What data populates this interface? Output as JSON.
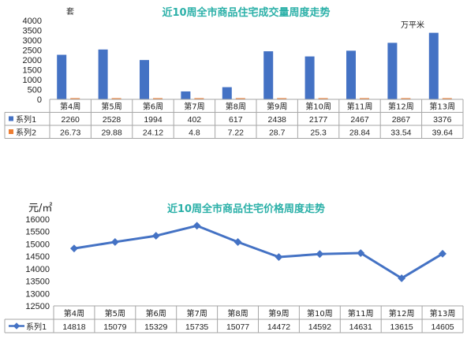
{
  "chart_data": [
    {
      "type": "bar",
      "title": "近10周全市商品住宅成交量周度走势",
      "left_unit": "套",
      "right_unit": "万平米",
      "categories": [
        "第4周",
        "第5周",
        "第6周",
        "第7周",
        "第8周",
        "第9周",
        "第10周",
        "第11周",
        "第12周",
        "第13周"
      ],
      "ylim": [
        0,
        4000
      ],
      "yticks": [
        0,
        500,
        1000,
        1500,
        2000,
        2500,
        3000,
        3500,
        4000
      ],
      "grid": false,
      "legend": "data-table",
      "series": [
        {
          "name": "系列1",
          "color": "#4472c4",
          "values": [
            2260,
            2528,
            1994,
            402,
            617,
            2438,
            2177,
            2467,
            2867,
            3376
          ],
          "labels": [
            "2260",
            "2528",
            "1994",
            "402",
            "617",
            "2438",
            "2177",
            "2467",
            "2867",
            "3376"
          ]
        },
        {
          "name": "系列2",
          "color": "#ed7d31",
          "values": [
            26.73,
            29.88,
            24.12,
            4.8,
            7.22,
            28.7,
            25.3,
            28.84,
            33.54,
            39.64
          ],
          "labels": [
            "26.73",
            "29.88",
            "24.12",
            "4.8",
            "7.22",
            "28.7",
            "25.3",
            "28.84",
            "33.54",
            "39.64"
          ]
        }
      ]
    },
    {
      "type": "line",
      "title": "近10周全市商品住宅价格周度走势",
      "unit": "元/㎡",
      "categories": [
        "第4周",
        "第5周",
        "第6周",
        "第7周",
        "第8周",
        "第9周",
        "第10周",
        "第11周",
        "第12周",
        "第13周"
      ],
      "ylim": [
        12500,
        16000
      ],
      "yticks": [
        12500,
        13000,
        13500,
        14000,
        14500,
        15000,
        15500,
        16000
      ],
      "grid": false,
      "legend": "data-table",
      "series": [
        {
          "name": "系列1",
          "color": "#4472c4",
          "values": [
            14818,
            15079,
            15329,
            15735,
            15077,
            14472,
            14592,
            14631,
            13615,
            14605
          ],
          "labels": [
            "14818",
            "15079",
            "15329",
            "15735",
            "15077",
            "14472",
            "14592",
            "14631",
            "13615",
            "14605"
          ]
        }
      ]
    }
  ]
}
